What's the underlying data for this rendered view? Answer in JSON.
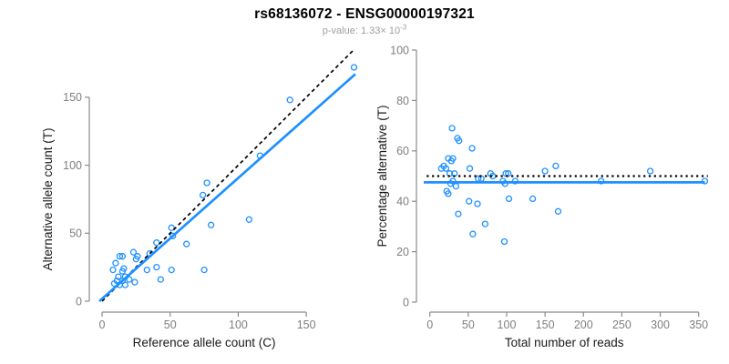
{
  "header": {
    "title": "rs68136072 - ENSG00000197321",
    "subtitle_prefix": "p-value: 1.33× 10",
    "subtitle_exponent": "-3"
  },
  "colors": {
    "background": "#ffffff",
    "point_blue": "#1E90FF",
    "fit_line_blue": "#1E90FF",
    "reference_line_black": "#000000",
    "axis_line_gray": "#8a8a8a",
    "tick_label_gray": "#7f7f7f",
    "axis_title_dark": "#1a1a1a",
    "subtitle_gray": "#9e9e9e"
  },
  "chart_data": [
    {
      "type": "scatter",
      "panel": "left",
      "xlabel": "Reference allele count (C)",
      "ylabel": "Alternative allele count (T)",
      "xlim": [
        0,
        186
      ],
      "ylim": [
        0,
        186
      ],
      "xticks": [
        0,
        50,
        100,
        150
      ],
      "yticks": [
        0,
        50,
        100,
        150
      ],
      "grid": false,
      "marker": "open-circle",
      "points": [
        [
          8,
          23
        ],
        [
          10,
          28
        ],
        [
          13,
          33
        ],
        [
          15,
          33
        ],
        [
          26,
          33
        ],
        [
          23,
          36
        ],
        [
          25,
          31
        ],
        [
          16,
          24
        ],
        [
          15,
          22
        ],
        [
          12,
          18
        ],
        [
          17,
          18
        ],
        [
          11,
          15
        ],
        [
          15,
          15
        ],
        [
          20,
          16
        ],
        [
          9,
          13
        ],
        [
          13,
          12
        ],
        [
          17,
          12
        ],
        [
          24,
          14
        ],
        [
          33,
          23
        ],
        [
          35,
          35
        ],
        [
          40,
          25
        ],
        [
          40,
          43
        ],
        [
          43,
          16
        ],
        [
          51,
          23
        ],
        [
          51,
          54
        ],
        [
          52,
          48
        ],
        [
          62,
          42
        ],
        [
          75,
          23
        ],
        [
          74,
          78
        ],
        [
          77,
          87
        ],
        [
          80,
          56
        ],
        [
          108,
          60
        ],
        [
          116,
          107
        ],
        [
          138,
          148
        ],
        [
          185,
          172
        ]
      ],
      "lines": [
        {
          "name": "identity-line",
          "style": "dashed",
          "color": "#000000",
          "from": [
            0,
            0
          ],
          "to": [
            184,
            184
          ]
        },
        {
          "name": "regression-line",
          "style": "solid",
          "color": "#1E90FF",
          "from": [
            -2,
            0
          ],
          "to": [
            186,
            167
          ]
        }
      ]
    },
    {
      "type": "scatter",
      "panel": "right",
      "xlabel": "Total number of reads",
      "ylabel": "Percentage alternative (T)",
      "xlim": [
        0,
        362
      ],
      "ylim": [
        0,
        100
      ],
      "xticks": [
        0,
        50,
        100,
        150,
        200,
        250,
        300,
        350
      ],
      "yticks": [
        0,
        20,
        40,
        60,
        80,
        100
      ],
      "grid": false,
      "marker": "open-circle",
      "points": [
        [
          29,
          69
        ],
        [
          36,
          65
        ],
        [
          38,
          64
        ],
        [
          55,
          61
        ],
        [
          24,
          57
        ],
        [
          30,
          57
        ],
        [
          28,
          56
        ],
        [
          18,
          54
        ],
        [
          21,
          53
        ],
        [
          15,
          53
        ],
        [
          52,
          53
        ],
        [
          26,
          51
        ],
        [
          32,
          51
        ],
        [
          79,
          51
        ],
        [
          82,
          50
        ],
        [
          63,
          49
        ],
        [
          67,
          49
        ],
        [
          30,
          48
        ],
        [
          27,
          47
        ],
        [
          34,
          46
        ],
        [
          22,
          44
        ],
        [
          24,
          43
        ],
        [
          99,
          51
        ],
        [
          102,
          51
        ],
        [
          95,
          48
        ],
        [
          98,
          47
        ],
        [
          111,
          48
        ],
        [
          150,
          52
        ],
        [
          164,
          54
        ],
        [
          51,
          40
        ],
        [
          62,
          39
        ],
        [
          103,
          41
        ],
        [
          134,
          41
        ],
        [
          37,
          35
        ],
        [
          72,
          31
        ],
        [
          56,
          27
        ],
        [
          97,
          24
        ],
        [
          167,
          36
        ],
        [
          223,
          48
        ],
        [
          287,
          52
        ],
        [
          358,
          48
        ]
      ],
      "lines": [
        {
          "name": "fifty-percent-line",
          "style": "dotted",
          "color": "#000000",
          "from": [
            -4,
            50
          ],
          "to": [
            362,
            50
          ]
        },
        {
          "name": "mean-percentage-line",
          "style": "solid",
          "color": "#1E90FF",
          "from": [
            -8,
            47.5
          ],
          "to": [
            358,
            47.5
          ]
        }
      ]
    }
  ]
}
